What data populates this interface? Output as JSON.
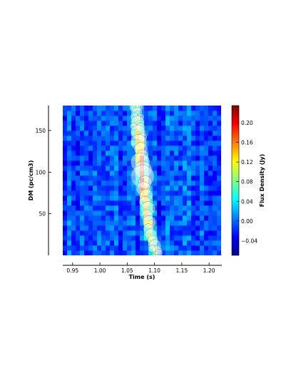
{
  "chart_data": {
    "type": "heatmap",
    "title": "",
    "xlabel": "Time (s)",
    "ylabel": "DM (pc/cm3)",
    "xlim": [
      0.932,
      1.222
    ],
    "ylim": [
      0,
      180
    ],
    "x_ticks": [
      0.95,
      1.0,
      1.05,
      1.1,
      1.15,
      1.2
    ],
    "x_tick_labels": [
      "0.95",
      "1.00",
      "1.05",
      "1.10",
      "1.15",
      "1.20"
    ],
    "y_ticks": [
      50,
      100,
      150
    ],
    "y_tick_labels": [
      "50",
      "100",
      "150"
    ],
    "grid": false,
    "colormap": "jet",
    "colorbar": {
      "label": "Flux Density (Jy)",
      "range": [
        -0.07,
        0.235
      ],
      "ticks": [
        -0.04,
        0.0,
        0.04,
        0.08,
        0.12,
        0.16,
        0.2
      ],
      "tick_labels": [
        "−0.04",
        "0.00",
        "0.04",
        "0.08",
        "0.12",
        "0.16",
        "0.20"
      ]
    },
    "background_level_jy": -0.01,
    "pulse_track": {
      "description_dm_vs_time": [
        {
          "dm": 180,
          "time": 1.067
        },
        {
          "dm": 160,
          "time": 1.068
        },
        {
          "dm": 140,
          "time": 1.071
        },
        {
          "dm": 120,
          "time": 1.074
        },
        {
          "dm": 100,
          "time": 1.077
        },
        {
          "dm": 80,
          "time": 1.08
        },
        {
          "dm": 60,
          "time": 1.084
        },
        {
          "dm": 40,
          "time": 1.088
        },
        {
          "dm": 20,
          "time": 1.093
        },
        {
          "dm": 5,
          "time": 1.1
        }
      ],
      "peak_flux_jy": 0.21,
      "peak_dm": 100
    },
    "overlay_points": [
      {
        "time": 1.062,
        "dm": 178,
        "size": 6
      },
      {
        "time": 1.072,
        "dm": 178,
        "size": 5
      },
      {
        "time": 1.068,
        "dm": 172,
        "size": 7
      },
      {
        "time": 1.064,
        "dm": 166,
        "size": 6
      },
      {
        "time": 1.074,
        "dm": 166,
        "size": 5
      },
      {
        "time": 1.069,
        "dm": 160,
        "size": 9
      },
      {
        "time": 1.062,
        "dm": 155,
        "size": 5
      },
      {
        "time": 1.074,
        "dm": 154,
        "size": 6
      },
      {
        "time": 1.07,
        "dm": 148,
        "size": 10
      },
      {
        "time": 1.078,
        "dm": 142,
        "size": 6
      },
      {
        "time": 1.071,
        "dm": 136,
        "size": 11
      },
      {
        "time": 1.075,
        "dm": 128,
        "size": 9
      },
      {
        "time": 1.078,
        "dm": 120,
        "size": 8
      },
      {
        "time": 1.074,
        "dm": 112,
        "size": 13
      },
      {
        "time": 1.079,
        "dm": 103,
        "size": 12
      },
      {
        "time": 1.078,
        "dm": 95,
        "size": 16
      },
      {
        "time": 1.083,
        "dm": 88,
        "size": 9
      },
      {
        "time": 1.08,
        "dm": 80,
        "size": 10
      },
      {
        "time": 1.085,
        "dm": 72,
        "size": 9
      },
      {
        "time": 1.083,
        "dm": 64,
        "size": 8
      },
      {
        "time": 1.088,
        "dm": 56,
        "size": 10
      },
      {
        "time": 1.086,
        "dm": 48,
        "size": 8
      },
      {
        "time": 1.09,
        "dm": 40,
        "size": 9
      },
      {
        "time": 1.089,
        "dm": 32,
        "size": 7
      },
      {
        "time": 1.093,
        "dm": 25,
        "size": 8
      },
      {
        "time": 1.097,
        "dm": 18,
        "size": 7
      },
      {
        "time": 1.101,
        "dm": 12,
        "size": 8
      },
      {
        "time": 1.105,
        "dm": 6,
        "size": 6
      },
      {
        "time": 1.096,
        "dm": 8,
        "size": 5
      },
      {
        "time": 1.108,
        "dm": 3,
        "size": 5
      }
    ]
  }
}
